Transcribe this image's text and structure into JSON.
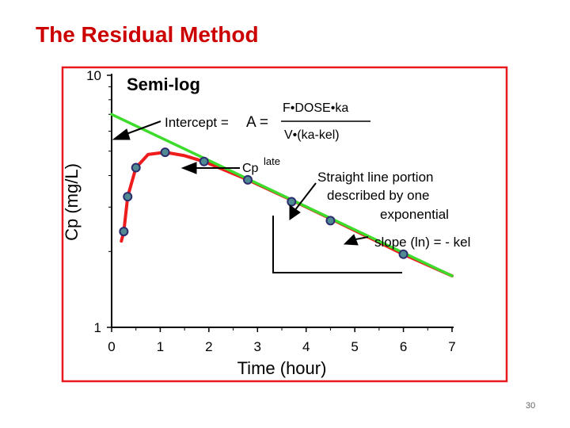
{
  "slide": {
    "title": "The Residual Method",
    "page_number": "30"
  },
  "chart_data": {
    "type": "line",
    "title": "Semi-log",
    "xlabel": "Time (hour)",
    "ylabel": "Cp (mg/L)",
    "x_scale": "linear",
    "y_scale": "log",
    "xlim": [
      0,
      7
    ],
    "ylim": [
      1,
      10
    ],
    "x_ticks": [
      0,
      1,
      2,
      3,
      4,
      5,
      6,
      7
    ],
    "x_tick_labels": [
      "0",
      "1",
      "2",
      "3",
      "4",
      "5",
      "6",
      "7"
    ],
    "y_ticks": [
      1,
      10
    ],
    "y_tick_labels": [
      "1",
      "10"
    ],
    "grid": false,
    "legend": "none",
    "colors": {
      "frame": "#e8191c",
      "curve": "#ee1c1c",
      "extrapolation": "#3ddc2c",
      "marker_fill": "#4f8a92",
      "marker_edge": "#2c2c6e",
      "axis": "#000000"
    },
    "series": [
      {
        "style": "markers",
        "x": [
          0.25,
          0.33,
          0.5,
          1.1,
          1.9,
          2.8,
          3.7,
          4.5,
          6.0
        ],
        "y": [
          2.4,
          3.3,
          4.3,
          4.95,
          4.55,
          3.85,
          3.15,
          2.65,
          1.95
        ]
      },
      {
        "style": "red-curve",
        "x": [
          0.2,
          0.25,
          0.33,
          0.5,
          0.75,
          1.1,
          1.5,
          1.9,
          2.8,
          3.7,
          4.5,
          6.0,
          7.0
        ],
        "y": [
          2.2,
          2.4,
          3.3,
          4.3,
          4.85,
          4.95,
          4.8,
          4.55,
          3.85,
          3.2,
          2.7,
          1.95,
          1.6
        ]
      },
      {
        "style": "green-line",
        "x": [
          0.0,
          7.0
        ],
        "y": [
          7.0,
          1.6
        ]
      }
    ],
    "annotations": {
      "intercept_label": "Intercept =",
      "intercept_symbol": "A =",
      "numerator": "F•DOSE•ka",
      "denominator": "V•(ka-kel)",
      "cp_label": "Cp",
      "cp_superscript": "late",
      "straight_line_1": "Straight line portion",
      "straight_line_2": "described by one",
      "straight_line_3": "exponential",
      "slope_label": "slope (ln) = - kel"
    }
  }
}
